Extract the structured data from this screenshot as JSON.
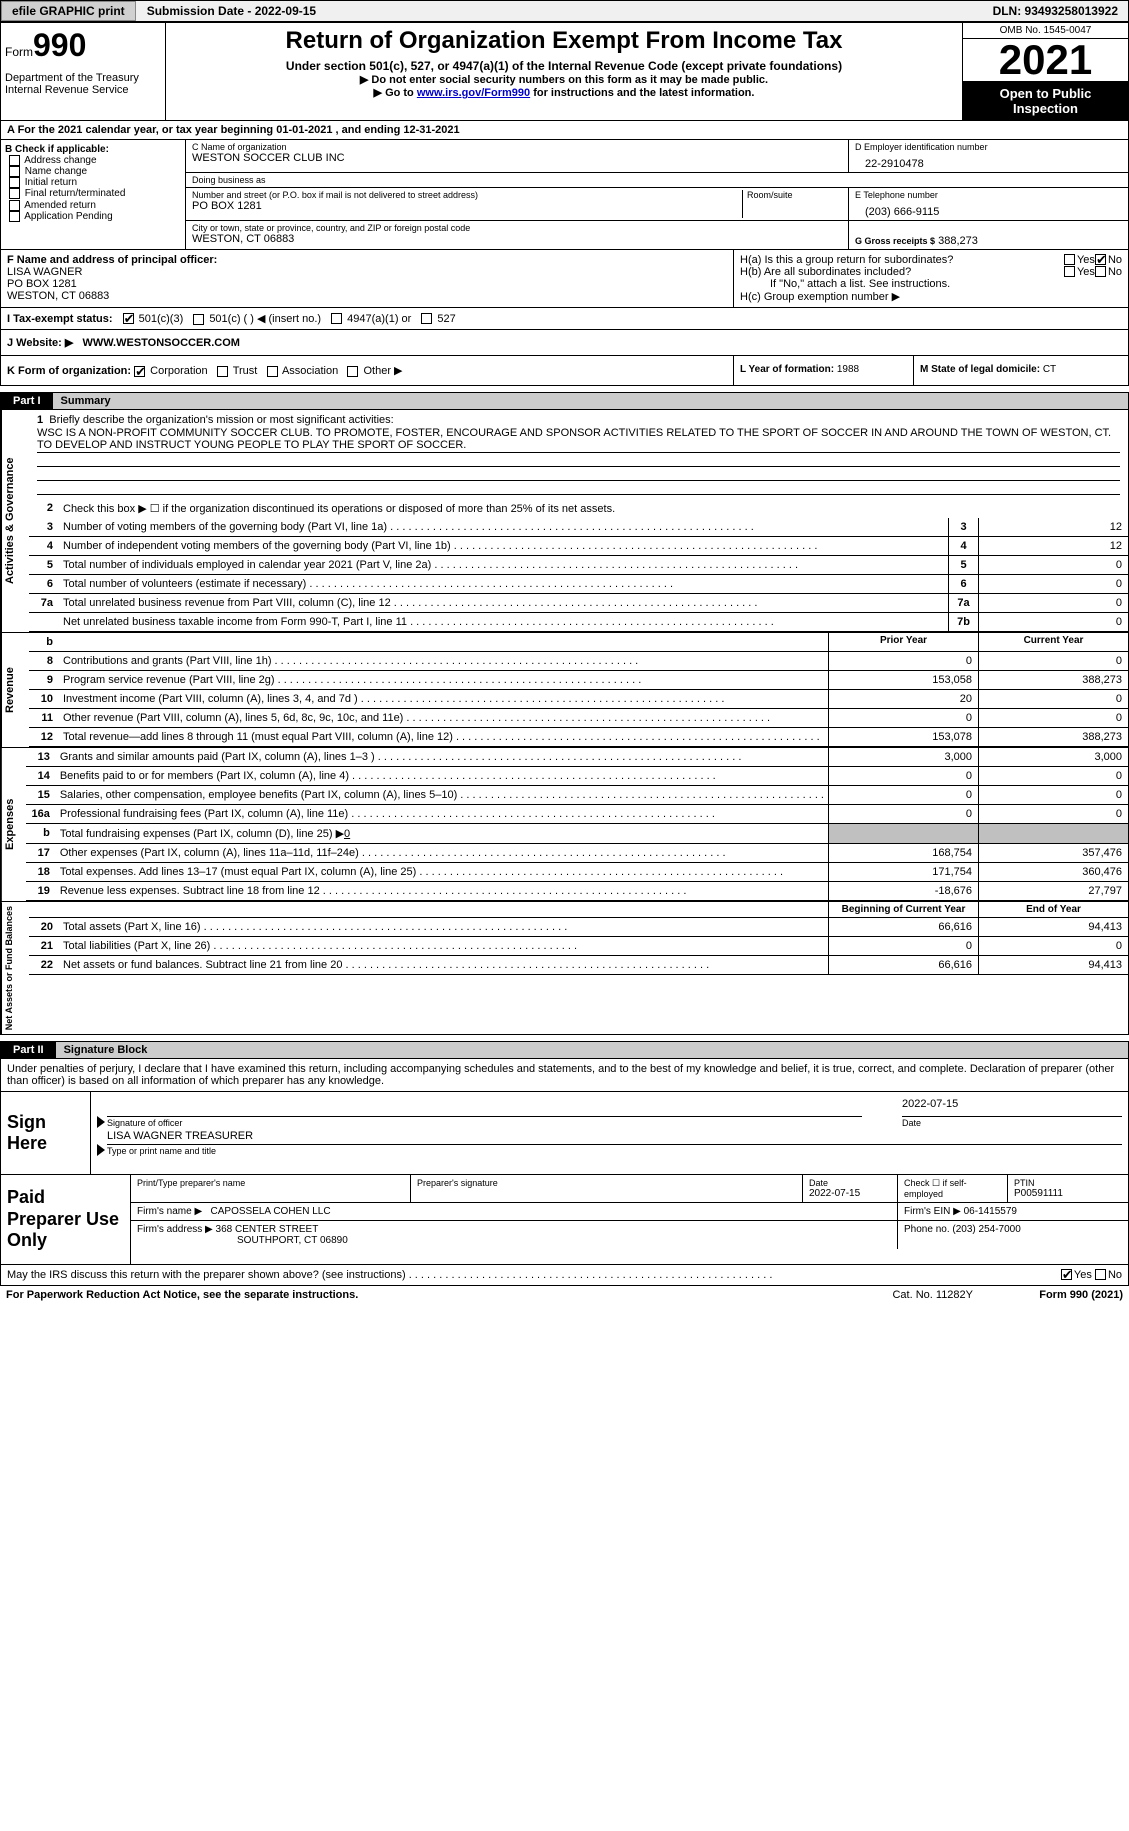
{
  "topbar": {
    "efile": "efile GRAPHIC print",
    "submission": "Submission Date - 2022-09-15",
    "dln": "DLN: 93493258013922"
  },
  "header": {
    "form_prefix": "Form",
    "form_num": "990",
    "title": "Return of Organization Exempt From Income Tax",
    "sub1": "Under section 501(c), 527, or 4947(a)(1) of the Internal Revenue Code (except private foundations)",
    "sub2": "▶ Do not enter social security numbers on this form as it may be made public.",
    "sub3_pre": "▶ Go to ",
    "sub3_link": "www.irs.gov/Form990",
    "sub3_post": " for instructions and the latest information.",
    "dept": "Department of the Treasury\nInternal Revenue Service",
    "omb": "OMB No. 1545-0047",
    "year": "2021",
    "open": "Open to Public Inspection"
  },
  "rowA": {
    "text_pre": "A For the 2021 calendar year, or tax year beginning ",
    "beg": "01-01-2021",
    "mid": "   , and ending ",
    "end": "12-31-2021"
  },
  "sectionB": {
    "hdr": "B Check if applicable:",
    "items": [
      "Address change",
      "Name change",
      "Initial return",
      "Final return/terminated",
      "Amended return",
      "Application Pending"
    ]
  },
  "sectionC": {
    "name_lbl": "C Name of organization",
    "name": "WESTON SOCCER CLUB INC",
    "dba_lbl": "Doing business as",
    "dba": "",
    "addr_lbl": "Number and street (or P.O. box if mail is not delivered to street address)",
    "room_lbl": "Room/suite",
    "addr": "PO BOX 1281",
    "city_lbl": "City or town, state or province, country, and ZIP or foreign postal code",
    "city": "WESTON, CT  06883"
  },
  "sectionD": {
    "lbl": "D Employer identification number",
    "val": "22-2910478"
  },
  "sectionE": {
    "lbl": "E Telephone number",
    "val": "(203) 666-9115"
  },
  "sectionG": {
    "lbl": "G Gross receipts $",
    "val": "388,273"
  },
  "sectionF": {
    "lbl": "F Name and address of principal officer:",
    "name": "LISA WAGNER",
    "addr": "PO BOX 1281",
    "city": "WESTON, CT  06883"
  },
  "sectionH": {
    "ha": "H(a)  Is this a group return for subordinates?",
    "ha_yes": "Yes",
    "ha_no": "No",
    "hb": "H(b)  Are all subordinates included?",
    "hb_yes": "Yes",
    "hb_no": "No",
    "hb_note": "If \"No,\" attach a list. See instructions.",
    "hc": "H(c)  Group exemption number ▶"
  },
  "sectionI": {
    "lbl": "I   Tax-exempt status:",
    "opts": [
      "501(c)(3)",
      "501(c) (  ) ◀ (insert no.)",
      "4947(a)(1) or",
      "527"
    ]
  },
  "sectionJ": {
    "lbl": "J   Website: ▶",
    "val": "WWW.WESTONSOCCER.COM"
  },
  "sectionK": {
    "lbl": "K Form of organization:",
    "opts": [
      "Corporation",
      "Trust",
      "Association",
      "Other ▶"
    ]
  },
  "sectionL": {
    "lbl": "L Year of formation:",
    "val": "1988"
  },
  "sectionM": {
    "lbl": "M State of legal domicile:",
    "val": "CT"
  },
  "parts": {
    "p1_num": "Part I",
    "p1_title": "Summary",
    "p2_num": "Part II",
    "p2_title": "Signature Block"
  },
  "summary": {
    "tab1": "Activities & Governance",
    "tab2": "Revenue",
    "tab3": "Expenses",
    "tab4": "Net Assets or Fund Balances",
    "line1": "Briefly describe the organization's mission or most significant activities:",
    "mission": "WSC IS A NON-PROFIT COMMUNITY SOCCER CLUB. TO PROMOTE, FOSTER, ENCOURAGE AND SPONSOR ACTIVITIES RELATED TO THE SPORT OF SOCCER IN AND AROUND THE TOWN OF WESTON, CT. TO DEVELOP AND INSTRUCT YOUNG PEOPLE TO PLAY THE SPORT OF SOCCER.",
    "line2": "Check this box ▶ ☐ if the organization discontinued its operations or disposed of more than 25% of its net assets.",
    "rows_single": [
      {
        "n": "3",
        "d": "Number of voting members of the governing body (Part VI, line 1a)",
        "box": "3",
        "v": "12"
      },
      {
        "n": "4",
        "d": "Number of independent voting members of the governing body (Part VI, line 1b)",
        "box": "4",
        "v": "12"
      },
      {
        "n": "5",
        "d": "Total number of individuals employed in calendar year 2021 (Part V, line 2a)",
        "box": "5",
        "v": "0"
      },
      {
        "n": "6",
        "d": "Total number of volunteers (estimate if necessary)",
        "box": "6",
        "v": "0"
      },
      {
        "n": "7a",
        "d": "Total unrelated business revenue from Part VIII, column (C), line 12",
        "box": "7a",
        "v": "0"
      },
      {
        "n": "",
        "d": "Net unrelated business taxable income from Form 990-T, Part I, line 11",
        "box": "7b",
        "v": "0"
      }
    ],
    "hdr_prior": "Prior Year",
    "hdr_current": "Current Year",
    "rows_rev": [
      {
        "n": "8",
        "d": "Contributions and grants (Part VIII, line 1h)",
        "p": "0",
        "c": "0"
      },
      {
        "n": "9",
        "d": "Program service revenue (Part VIII, line 2g)",
        "p": "153,058",
        "c": "388,273"
      },
      {
        "n": "10",
        "d": "Investment income (Part VIII, column (A), lines 3, 4, and 7d )",
        "p": "20",
        "c": "0"
      },
      {
        "n": "11",
        "d": "Other revenue (Part VIII, column (A), lines 5, 6d, 8c, 9c, 10c, and 11e)",
        "p": "0",
        "c": "0"
      },
      {
        "n": "12",
        "d": "Total revenue—add lines 8 through 11 (must equal Part VIII, column (A), line 12)",
        "p": "153,078",
        "c": "388,273"
      }
    ],
    "rows_exp": [
      {
        "n": "13",
        "d": "Grants and similar amounts paid (Part IX, column (A), lines 1–3 )",
        "p": "3,000",
        "c": "3,000"
      },
      {
        "n": "14",
        "d": "Benefits paid to or for members (Part IX, column (A), line 4)",
        "p": "0",
        "c": "0"
      },
      {
        "n": "15",
        "d": "Salaries, other compensation, employee benefits (Part IX, column (A), lines 5–10)",
        "p": "0",
        "c": "0"
      },
      {
        "n": "16a",
        "d": "Professional fundraising fees (Part IX, column (A), line 11e)",
        "p": "0",
        "c": "0"
      }
    ],
    "line16b_n": "b",
    "line16b": "Total fundraising expenses (Part IX, column (D), line 25) ▶",
    "line16b_val": "0",
    "rows_exp2": [
      {
        "n": "17",
        "d": "Other expenses (Part IX, column (A), lines 11a–11d, 11f–24e)",
        "p": "168,754",
        "c": "357,476"
      },
      {
        "n": "18",
        "d": "Total expenses. Add lines 13–17 (must equal Part IX, column (A), line 25)",
        "p": "171,754",
        "c": "360,476"
      },
      {
        "n": "19",
        "d": "Revenue less expenses. Subtract line 18 from line 12",
        "p": "-18,676",
        "c": "27,797"
      }
    ],
    "hdr_beg": "Beginning of Current Year",
    "hdr_end": "End of Year",
    "rows_net": [
      {
        "n": "20",
        "d": "Total assets (Part X, line 16)",
        "p": "66,616",
        "c": "94,413"
      },
      {
        "n": "21",
        "d": "Total liabilities (Part X, line 26)",
        "p": "0",
        "c": "0"
      },
      {
        "n": "22",
        "d": "Net assets or fund balances. Subtract line 21 from line 20",
        "p": "66,616",
        "c": "94,413"
      }
    ]
  },
  "sig": {
    "intro": "Under penalties of perjury, I declare that I have examined this return, including accompanying schedules and statements, and to the best of my knowledge and belief, it is true, correct, and complete. Declaration of preparer (other than officer) is based on all information of which preparer has any knowledge.",
    "sign_here": "Sign Here",
    "sig_lbl": "Signature of officer",
    "date_lbl": "Date",
    "date_val": "2022-07-15",
    "name_val": "LISA WAGNER  TREASURER",
    "name_lbl": "Type or print name and title"
  },
  "prep": {
    "title": "Paid Preparer Use Only",
    "r1_c1_lbl": "Print/Type preparer's name",
    "r1_c1": "",
    "r1_c2_lbl": "Preparer's signature",
    "r1_c2": "",
    "r1_c3_lbl": "Date",
    "r1_c3": "2022-07-15",
    "r1_c4_lbl": "Check ☐ if self-employed",
    "r1_c5_lbl": "PTIN",
    "r1_c5": "P00591111",
    "r2_lbl": "Firm's name    ▶",
    "r2_val": "CAPOSSELA COHEN LLC",
    "r2_ein_lbl": "Firm's EIN ▶",
    "r2_ein": "06-1415579",
    "r3_lbl": "Firm's address ▶",
    "r3_val1": "368 CENTER STREET",
    "r3_val2": "SOUTHPORT, CT  06890",
    "r3_ph_lbl": "Phone no.",
    "r3_ph": "(203) 254-7000"
  },
  "discuss": {
    "text": "May the IRS discuss this return with the preparer shown above? (see instructions)",
    "yes": "Yes",
    "no": "No"
  },
  "footer": {
    "l": "For Paperwork Reduction Act Notice, see the separate instructions.",
    "m": "Cat. No. 11282Y",
    "r": "Form 990 (2021)"
  }
}
